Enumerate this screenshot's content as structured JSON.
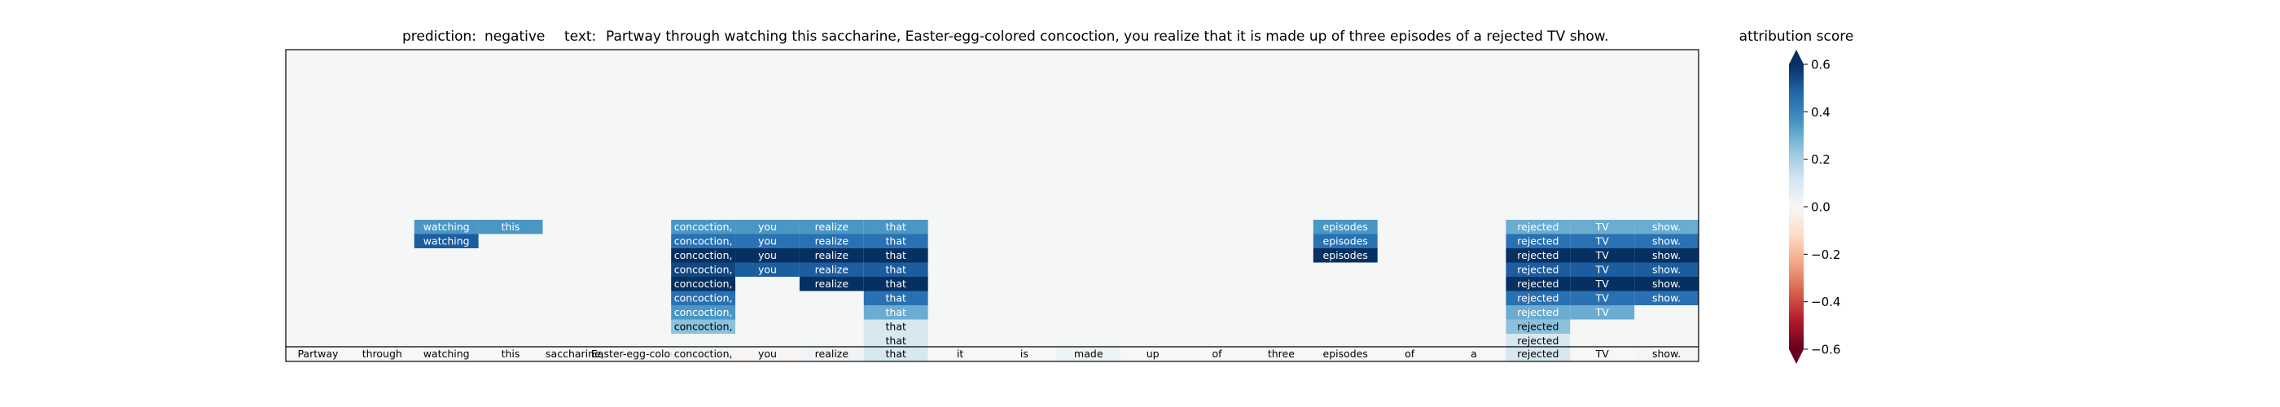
{
  "chart_data": {
    "type": "heatmap",
    "prediction_label": "prediction:",
    "prediction": "negative",
    "text_label": "text:",
    "text": "Partway through watching this saccharine, Easter-egg-colored concoction, you realize that it is made up of three episodes of a rejected TV show.",
    "tokens": [
      "Partway",
      "through",
      "watching",
      "this",
      "saccharine,",
      "Easter-egg-colored",
      "concoction,",
      "you",
      "realize",
      "that",
      "it",
      "is",
      "made",
      "up",
      "of",
      "three",
      "episodes",
      "of",
      "a",
      "rejected",
      "TV",
      "show."
    ],
    "base_row": {
      "attributions": [
        0.0,
        0.0,
        0.0,
        0.0,
        0.0,
        0.0,
        0.02,
        -0.01,
        0.02,
        0.1,
        0.0,
        0.0,
        0.03,
        0.0,
        0.0,
        0.0,
        0.0,
        0.0,
        0.0,
        0.1,
        0.0,
        0.01
      ]
    },
    "stack_rows": [
      {
        "cells": [
          {
            "token": 2,
            "value": 0.35
          },
          {
            "token": 3,
            "value": 0.35
          },
          {
            "token": 6,
            "value": 0.35
          },
          {
            "token": 7,
            "value": 0.35
          },
          {
            "token": 8,
            "value": 0.35
          },
          {
            "token": 9,
            "value": 0.35
          },
          {
            "token": 16,
            "value": 0.35
          },
          {
            "token": 19,
            "value": 0.3
          },
          {
            "token": 20,
            "value": 0.3
          },
          {
            "token": 21,
            "value": 0.3
          }
        ]
      },
      {
        "cells": [
          {
            "token": 2,
            "value": 0.5
          },
          {
            "token": 6,
            "value": 0.45
          },
          {
            "token": 7,
            "value": 0.45
          },
          {
            "token": 8,
            "value": 0.45
          },
          {
            "token": 9,
            "value": 0.45
          },
          {
            "token": 16,
            "value": 0.45
          },
          {
            "token": 19,
            "value": 0.45
          },
          {
            "token": 20,
            "value": 0.45
          },
          {
            "token": 21,
            "value": 0.45
          }
        ]
      },
      {
        "cells": [
          {
            "token": 6,
            "value": 0.6
          },
          {
            "token": 7,
            "value": 0.6
          },
          {
            "token": 8,
            "value": 0.6
          },
          {
            "token": 9,
            "value": 0.6
          },
          {
            "token": 16,
            "value": 0.6
          },
          {
            "token": 19,
            "value": 0.6
          },
          {
            "token": 20,
            "value": 0.6
          },
          {
            "token": 21,
            "value": 0.6
          }
        ]
      },
      {
        "cells": [
          {
            "token": 6,
            "value": 0.55
          },
          {
            "token": 7,
            "value": 0.5
          },
          {
            "token": 8,
            "value": 0.5
          },
          {
            "token": 9,
            "value": 0.5
          },
          {
            "token": 19,
            "value": 0.5
          },
          {
            "token": 20,
            "value": 0.5
          },
          {
            "token": 21,
            "value": 0.5
          }
        ]
      },
      {
        "cells": [
          {
            "token": 6,
            "value": 0.6
          },
          {
            "token": 8,
            "value": 0.6
          },
          {
            "token": 9,
            "value": 0.6
          },
          {
            "token": 19,
            "value": 0.6
          },
          {
            "token": 20,
            "value": 0.6
          },
          {
            "token": 21,
            "value": 0.6
          }
        ]
      },
      {
        "cells": [
          {
            "token": 6,
            "value": 0.45
          },
          {
            "token": 9,
            "value": 0.45
          },
          {
            "token": 19,
            "value": 0.45
          },
          {
            "token": 20,
            "value": 0.45
          },
          {
            "token": 21,
            "value": 0.45
          }
        ]
      },
      {
        "cells": [
          {
            "token": 6,
            "value": 0.35
          },
          {
            "token": 9,
            "value": 0.3
          },
          {
            "token": 19,
            "value": 0.3
          },
          {
            "token": 20,
            "value": 0.3
          }
        ]
      },
      {
        "cells": [
          {
            "token": 6,
            "value": 0.25
          },
          {
            "token": 9,
            "value": 0.1
          },
          {
            "token": 19,
            "value": 0.25
          }
        ]
      },
      {
        "cells": [
          {
            "token": 9,
            "value": 0.1
          },
          {
            "token": 19,
            "value": 0.1
          }
        ]
      }
    ],
    "colorbar": {
      "label": "attribution score",
      "vmin": -0.6,
      "vmax": 0.6,
      "ticks": [
        0.6,
        0.4,
        0.2,
        0.0,
        -0.2,
        -0.4,
        -0.6
      ],
      "tick_labels": [
        "0.6",
        "0.4",
        "0.2",
        "0.0",
        "−0.2",
        "−0.4",
        "−0.6"
      ],
      "colormap": "RdBu",
      "colors": [
        "#67001f",
        "#b2182b",
        "#d6604d",
        "#f4a582",
        "#fddbc7",
        "#f7f7f7",
        "#d1e5f0",
        "#92c5de",
        "#4393c3",
        "#2166ac",
        "#053061"
      ]
    },
    "background_color": "#f5f6f6"
  }
}
